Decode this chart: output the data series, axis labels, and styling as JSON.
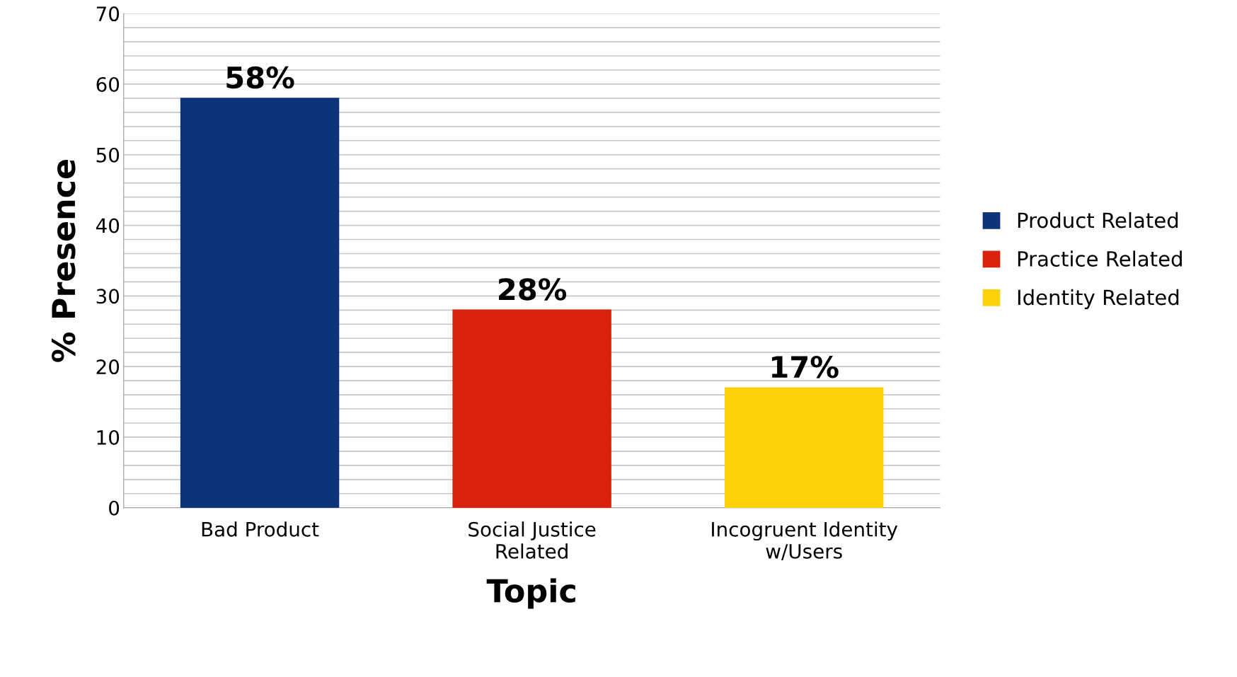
{
  "chart_data": {
    "type": "bar",
    "xlabel": "Topic",
    "ylabel": "% Presence",
    "categories": [
      "Bad Product",
      "Social Justice\nRelated",
      "Incogruent Identity\nw/Users"
    ],
    "series": [
      {
        "name": "Product Related",
        "color": "#0d3478",
        "values": [
          58,
          null,
          null
        ],
        "value_labels": [
          "58%",
          null,
          null
        ]
      },
      {
        "name": "Practice Related",
        "color": "#d9230c",
        "values": [
          null,
          28,
          null
        ],
        "value_labels": [
          null,
          "28%",
          null
        ]
      },
      {
        "name": "Identity Related",
        "color": "#fdd20a",
        "values": [
          null,
          null,
          17
        ],
        "value_labels": [
          null,
          null,
          "17%"
        ]
      }
    ],
    "ylim": [
      0,
      70
    ],
    "yticks": [
      0,
      {
        "value": 2,
        "label": null
      },
      {
        "value": 4,
        "label": null
      },
      {
        "value": 6,
        "label": null
      },
      {
        "value": 8,
        "label": null
      },
      10,
      {
        "value": 12,
        "label": null
      },
      {
        "value": 14,
        "label": null
      },
      {
        "value": 16,
        "label": null
      },
      {
        "value": 18,
        "label": null
      },
      20,
      {
        "value": 22,
        "label": null
      },
      {
        "value": 24,
        "label": null
      },
      {
        "value": 26,
        "label": null
      },
      {
        "value": 28,
        "label": null
      },
      30,
      {
        "value": 32,
        "label": null
      },
      {
        "value": 34,
        "label": null
      },
      {
        "value": 36,
        "label": null
      },
      {
        "value": 38,
        "label": null
      },
      40,
      {
        "value": 42,
        "label": null
      },
      {
        "value": 44,
        "label": null
      },
      {
        "value": 46,
        "label": null
      },
      {
        "value": 48,
        "label": null
      },
      50,
      {
        "value": 52,
        "label": null
      },
      {
        "value": 54,
        "label": null
      },
      {
        "value": 56,
        "label": null
      },
      {
        "value": 58,
        "label": null
      },
      60,
      {
        "value": 62,
        "label": null
      },
      {
        "value": 64,
        "label": null
      },
      {
        "value": 66,
        "label": null
      },
      {
        "value": 68,
        "label": null
      },
      70
    ],
    "grid": "y",
    "legend": "right"
  }
}
